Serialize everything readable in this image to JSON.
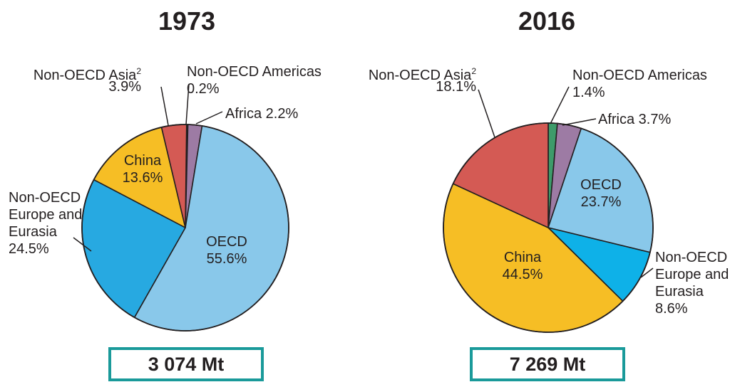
{
  "chart_data": [
    {
      "type": "pie",
      "title": "1973",
      "total": "3 074 Mt",
      "slices": [
        {
          "key": "oecd",
          "label": "OECD",
          "value": 55.6,
          "value_text": "55.6%",
          "color": "#89c8ea"
        },
        {
          "key": "europe",
          "label": "Non-OECD Europe and Eurasia",
          "lines": [
            "Non-OECD",
            "Europe and",
            "Eurasia"
          ],
          "value": 24.5,
          "value_text": "24.5%",
          "color": "#27a9e1"
        },
        {
          "key": "china",
          "label": "China",
          "value": 13.6,
          "value_text": "13.6%",
          "color": "#f6be25"
        },
        {
          "key": "asia",
          "label": "Non-OECD Asia",
          "footnote": "2",
          "value": 3.9,
          "value_text": "3.9%",
          "color": "#d45a54"
        },
        {
          "key": "americas",
          "label": "Non-OECD Americas",
          "value": 0.2,
          "value_text": "0.2%",
          "color": "#3d9b6a"
        },
        {
          "key": "africa",
          "label": "Africa",
          "value": 2.2,
          "value_text": "2.2%",
          "color": "#9d7ba4"
        }
      ]
    },
    {
      "type": "pie",
      "title": "2016",
      "total": "7 269 Mt",
      "slices": [
        {
          "key": "oecd",
          "label": "OECD",
          "value": 23.7,
          "value_text": "23.7%",
          "color": "#89c8ea"
        },
        {
          "key": "europe",
          "label": "Non-OECD Europe and Eurasia",
          "lines": [
            "Non-OECD",
            "Europe and",
            "Eurasia"
          ],
          "value": 8.6,
          "value_text": "8.6%",
          "color": "#0eb1e8"
        },
        {
          "key": "china",
          "label": "China",
          "value": 44.5,
          "value_text": "44.5%",
          "color": "#f6be25"
        },
        {
          "key": "asia",
          "label": "Non-OECD Asia",
          "footnote": "2",
          "value": 18.1,
          "value_text": "18.1%",
          "color": "#d45a54"
        },
        {
          "key": "americas",
          "label": "Non-OECD Americas",
          "value": 1.4,
          "value_text": "1.4%",
          "color": "#3d9b6a"
        },
        {
          "key": "africa",
          "label": "Africa",
          "value": 3.7,
          "value_text": "3.7%",
          "color": "#9d7ba4"
        }
      ]
    }
  ]
}
